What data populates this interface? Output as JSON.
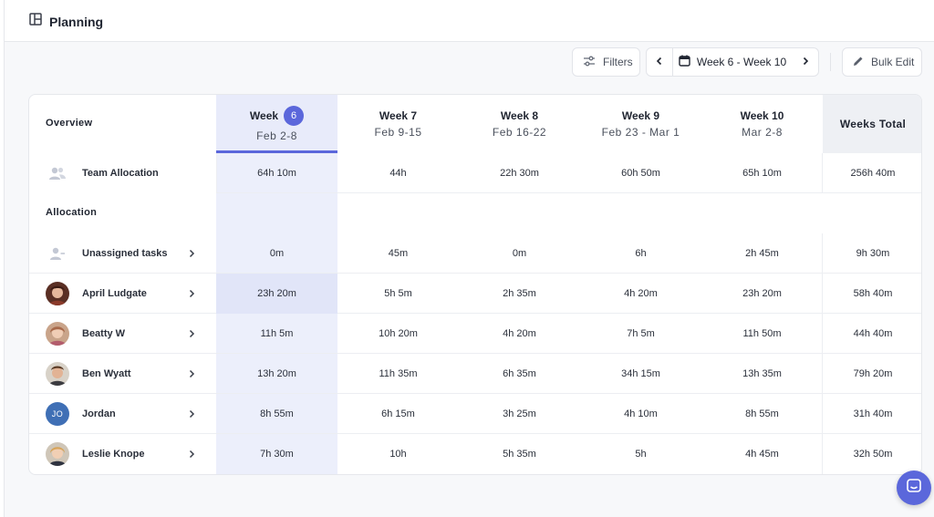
{
  "header": {
    "title": "Planning"
  },
  "toolbar": {
    "filters_label": "Filters",
    "week_range": "Week 6 - Week 10",
    "bulk_edit_label": "Bulk Edit"
  },
  "table": {
    "overview_label": "Overview",
    "allocation_label": "Allocation",
    "total_label": "Weeks Total",
    "weeks": [
      {
        "label": "Week",
        "badge": "6",
        "dates": "Feb 2-8"
      },
      {
        "label": "Week 7",
        "dates": "Feb 9-15"
      },
      {
        "label": "Week 8",
        "dates": "Feb 16-22"
      },
      {
        "label": "Week 9",
        "dates": "Feb 23 - Mar 1"
      },
      {
        "label": "Week 10",
        "dates": "Mar 2-8"
      }
    ],
    "team": {
      "label": "Team Allocation",
      "values": [
        "64h 10m",
        "44h",
        "22h 30m",
        "60h 50m",
        "65h 10m"
      ],
      "total": "256h 40m"
    },
    "rows": [
      {
        "name": "Unassigned tasks",
        "avatar": "unassigned",
        "values": [
          "0m",
          "45m",
          "0m",
          "6h",
          "2h 45m"
        ],
        "total": "9h 30m"
      },
      {
        "name": "April Ludgate",
        "avatar": "photo",
        "values": [
          "23h 20m",
          "5h 5m",
          "2h 35m",
          "4h 20m",
          "23h 20m"
        ],
        "total": "58h 40m"
      },
      {
        "name": "Beatty W",
        "avatar": "photo",
        "values": [
          "11h 5m",
          "10h 20m",
          "4h 20m",
          "7h 5m",
          "11h 50m"
        ],
        "total": "44h 40m"
      },
      {
        "name": "Ben Wyatt",
        "avatar": "photo",
        "values": [
          "13h 20m",
          "11h 35m",
          "6h 35m",
          "34h 15m",
          "13h 35m"
        ],
        "total": "79h 20m"
      },
      {
        "name": "Jordan",
        "avatar": "initials",
        "initials": "JO",
        "values": [
          "8h 55m",
          "6h 15m",
          "3h 25m",
          "4h 10m",
          "8h 55m"
        ],
        "total": "31h 40m"
      },
      {
        "name": "Leslie Knope",
        "avatar": "photo",
        "values": [
          "7h 30m",
          "10h",
          "5h 35m",
          "5h",
          "4h 45m"
        ],
        "total": "32h 50m"
      }
    ]
  },
  "colors": {
    "accent": "#5b67db",
    "highlight": "#eceffb",
    "total_bg": "#eef0f4"
  }
}
